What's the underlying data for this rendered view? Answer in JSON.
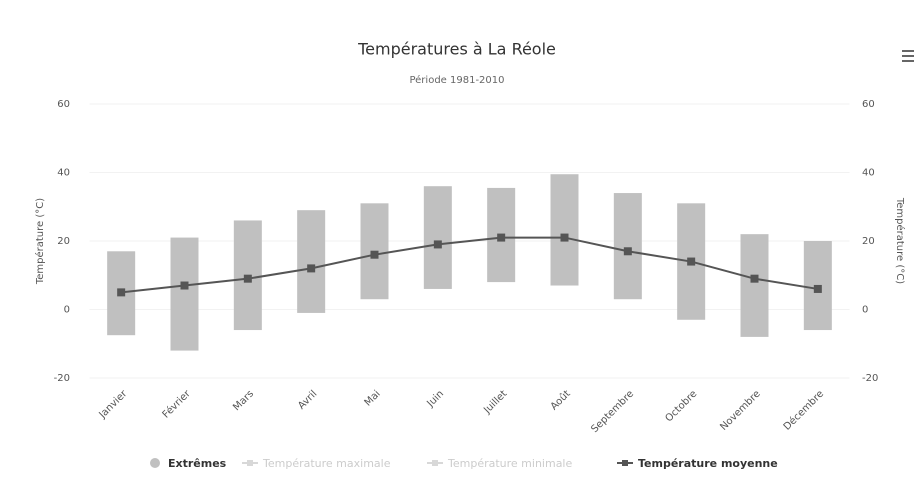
{
  "chart_data": {
    "type": "columnrange-line",
    "title": "Températures à La Réole",
    "subtitle": "Période 1981-2010",
    "y_label": "Température (°C)",
    "y2_label": "Température (°C)",
    "categories": [
      "Janvier",
      "Février",
      "Mars",
      "Avril",
      "Mai",
      "Juin",
      "Juillet",
      "Août",
      "Septembre",
      "Octobre",
      "Novembre",
      "Décembre"
    ],
    "ylim": [
      -20,
      60
    ],
    "yticks": [
      -20,
      0,
      20,
      40,
      60
    ],
    "y2lim": [
      -20,
      60
    ],
    "y2ticks": [
      -20,
      0,
      20,
      40,
      60
    ],
    "series": [
      {
        "name": "Extrêmes",
        "color": "#c0c0c0",
        "values": [
          [
            -7.5,
            17
          ],
          [
            -12,
            21
          ],
          [
            -6,
            26
          ],
          [
            -1,
            29
          ],
          [
            3,
            31
          ],
          [
            6,
            36
          ],
          [
            8,
            35.5
          ],
          [
            7,
            39.5
          ],
          [
            3,
            34
          ],
          [
            -3,
            31
          ],
          [
            -8,
            22
          ],
          [
            -6,
            20
          ]
        ]
      },
      {
        "name": "Température maximale",
        "color": "#d8d8d8"
      },
      {
        "name": "Température minimale",
        "color": "#d8d8d8"
      },
      {
        "name": "Température moyenne",
        "color": "#555555",
        "values": [
          5,
          7,
          9,
          12,
          16,
          19,
          21,
          21,
          17,
          14,
          9,
          6
        ]
      }
    ]
  }
}
